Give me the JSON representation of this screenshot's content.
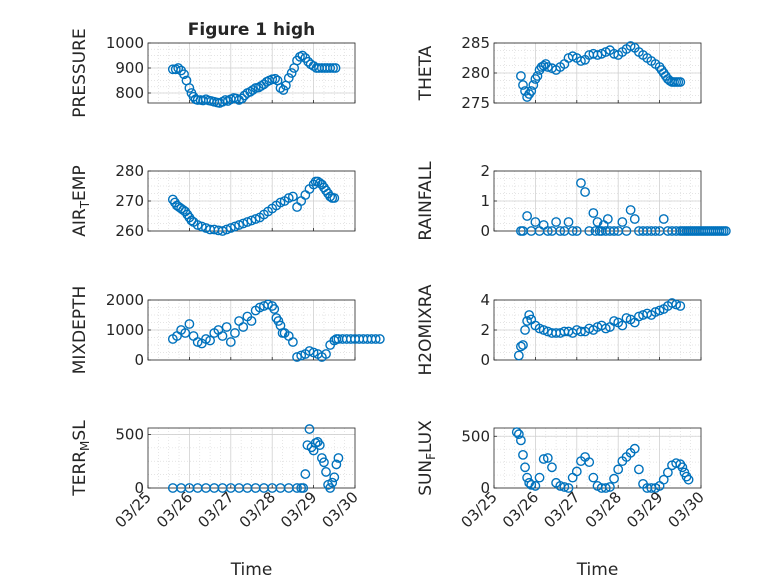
{
  "figure": {
    "title": "Figure 1 high",
    "xlabel": "Time",
    "xtick_labels": [
      "03/25",
      "03/26",
      "03/27",
      "03/28",
      "03/29",
      "03/30"
    ],
    "marker_color": "#0072BD",
    "grid_color": "#dcdcdc"
  },
  "chart_data": [
    {
      "type": "scatter",
      "ylabel": "PRESSURE",
      "ylim": [
        760,
        1000
      ],
      "yticks": [
        800,
        900,
        1000
      ],
      "grid": true,
      "x": [
        0.6,
        0.67,
        0.73,
        0.8,
        0.87,
        0.93,
        1.0,
        1.05,
        1.1,
        1.15,
        1.2,
        1.27,
        1.33,
        1.4,
        1.47,
        1.53,
        1.6,
        1.67,
        1.73,
        1.8,
        1.87,
        1.93,
        2.0,
        2.07,
        2.13,
        2.2,
        2.27,
        2.33,
        2.4,
        2.47,
        2.53,
        2.6,
        2.67,
        2.73,
        2.8,
        2.87,
        2.93,
        3.0,
        3.07,
        3.13,
        3.2,
        3.27,
        3.33,
        3.4,
        3.47,
        3.53,
        3.6,
        3.67,
        3.73,
        3.8,
        3.87,
        3.93,
        4.0,
        4.07,
        4.13,
        4.2,
        4.27,
        4.33,
        4.4,
        4.47,
        4.53
      ],
      "y": [
        895,
        895,
        900,
        890,
        875,
        850,
        820,
        800,
        785,
        775,
        772,
        772,
        770,
        775,
        770,
        768,
        765,
        762,
        760,
        765,
        772,
        768,
        775,
        780,
        778,
        772,
        778,
        790,
        800,
        805,
        812,
        820,
        822,
        828,
        835,
        845,
        850,
        855,
        857,
        850,
        820,
        812,
        830,
        860,
        880,
        900,
        930,
        945,
        950,
        940,
        925,
        915,
        908,
        900,
        900,
        900,
        900,
        900,
        900,
        900,
        900
      ]
    },
    {
      "type": "scatter",
      "ylabel": "THETA",
      "ylim": [
        275,
        285
      ],
      "yticks": [
        275,
        280,
        285
      ],
      "grid": true,
      "x": [
        0.65,
        0.7,
        0.75,
        0.8,
        0.85,
        0.9,
        0.95,
        1.0,
        1.05,
        1.1,
        1.15,
        1.2,
        1.25,
        1.3,
        1.4,
        1.5,
        1.6,
        1.7,
        1.8,
        1.9,
        2.0,
        2.1,
        2.2,
        2.3,
        2.4,
        2.5,
        2.6,
        2.7,
        2.8,
        2.9,
        3.0,
        3.1,
        3.2,
        3.3,
        3.4,
        3.5,
        3.6,
        3.7,
        3.8,
        3.9,
        4.0,
        4.05,
        4.1,
        4.15,
        4.2,
        4.25,
        4.3,
        4.35,
        4.4,
        4.45,
        4.5
      ],
      "y": [
        279.5,
        278,
        277,
        276,
        276.5,
        277,
        278,
        279,
        279.5,
        280.5,
        281,
        281.2,
        281.5,
        281,
        280.8,
        280.5,
        281,
        281.5,
        282.5,
        282.8,
        282.5,
        282,
        282.2,
        283,
        283.2,
        283,
        283.2,
        283.5,
        283.8,
        283.2,
        283,
        283.5,
        284,
        284.5,
        284.2,
        283.5,
        283,
        282.5,
        282,
        281.5,
        281,
        280.5,
        280,
        279.5,
        279,
        278.7,
        278.5,
        278.5,
        278.5,
        278.5,
        278.5
      ]
    },
    {
      "type": "scatter",
      "ylabel": "AIR_TEMP",
      "ylim": [
        260,
        280
      ],
      "yticks": [
        260,
        270,
        280
      ],
      "grid": true,
      "x": [
        0.6,
        0.65,
        0.7,
        0.75,
        0.8,
        0.85,
        0.9,
        0.95,
        1.0,
        1.05,
        1.1,
        1.2,
        1.3,
        1.4,
        1.5,
        1.6,
        1.7,
        1.8,
        1.9,
        2.0,
        2.1,
        2.2,
        2.3,
        2.4,
        2.5,
        2.6,
        2.7,
        2.8,
        2.9,
        3.0,
        3.1,
        3.2,
        3.3,
        3.4,
        3.5,
        3.6,
        3.7,
        3.8,
        3.9,
        4.0,
        4.05,
        4.1,
        4.15,
        4.2,
        4.25,
        4.3,
        4.35,
        4.4,
        4.45,
        4.5
      ],
      "y": [
        270.5,
        269.5,
        268.5,
        268,
        267.5,
        267,
        266.5,
        265.5,
        264.5,
        263.5,
        263,
        262,
        261.5,
        261,
        260.5,
        260.5,
        260.2,
        260,
        260.5,
        261,
        261.5,
        262,
        262.5,
        263,
        263.5,
        264,
        264.5,
        265.5,
        266.5,
        267.5,
        268.5,
        269.5,
        270,
        271,
        271.5,
        268,
        270,
        272,
        274,
        275.5,
        276.5,
        276.5,
        276,
        275.5,
        274.5,
        273.5,
        272.5,
        271.5,
        271,
        271
      ]
    },
    {
      "type": "scatter",
      "ylabel": "RAINFALL",
      "ylim": [
        0,
        2
      ],
      "yticks": [
        0,
        1,
        2
      ],
      "grid": true,
      "x": [
        0.65,
        0.7,
        0.8,
        0.9,
        1.0,
        1.1,
        1.2,
        1.3,
        1.4,
        1.5,
        1.6,
        1.7,
        1.8,
        1.9,
        2.0,
        2.1,
        2.2,
        2.3,
        2.4,
        2.45,
        2.5,
        2.55,
        2.6,
        2.65,
        2.7,
        2.75,
        2.8,
        2.9,
        3.0,
        3.1,
        3.2,
        3.3,
        3.4,
        3.5,
        3.6,
        3.7,
        3.8,
        3.9,
        4.0,
        4.1,
        4.2,
        4.3,
        4.4,
        4.5,
        4.55,
        4.6,
        4.65,
        4.7,
        4.75,
        4.8,
        4.85,
        4.9,
        4.95,
        5.0,
        5.05,
        5.1,
        5.15,
        5.2,
        5.25,
        5.3,
        5.35,
        5.4,
        5.45,
        5.5,
        5.55,
        5.6
      ],
      "y": [
        0,
        0,
        0.5,
        0,
        0.3,
        0,
        0.2,
        0,
        0,
        0.3,
        0,
        0,
        0.3,
        0,
        0,
        1.6,
        1.3,
        0,
        0.6,
        0,
        0.3,
        0,
        0,
        0.2,
        0,
        0.4,
        0,
        0,
        0,
        0.3,
        0,
        0.7,
        0.4,
        0,
        0,
        0,
        0,
        0,
        0,
        0.4,
        0,
        0,
        0,
        0,
        0,
        0,
        0,
        0,
        0,
        0,
        0,
        0,
        0,
        0,
        0,
        0,
        0,
        0,
        0,
        0,
        0,
        0,
        0,
        0,
        0,
        0
      ]
    },
    {
      "type": "scatter",
      "ylabel": "MIXDEPTH",
      "ylim": [
        0,
        2000
      ],
      "yticks": [
        0,
        1000,
        2000
      ],
      "grid": true,
      "x": [
        0.6,
        0.7,
        0.8,
        0.9,
        1.0,
        1.1,
        1.2,
        1.3,
        1.4,
        1.5,
        1.6,
        1.7,
        1.8,
        1.9,
        2.0,
        2.1,
        2.2,
        2.3,
        2.4,
        2.5,
        2.6,
        2.7,
        2.8,
        2.9,
        3.0,
        3.05,
        3.1,
        3.15,
        3.2,
        3.25,
        3.3,
        3.4,
        3.5,
        3.6,
        3.7,
        3.8,
        3.9,
        4.0,
        4.1,
        4.2,
        4.3,
        4.4,
        4.5,
        4.55,
        4.6,
        4.7,
        4.8,
        4.9,
        5.0,
        5.1,
        5.2,
        5.3,
        5.4,
        5.5,
        5.6
      ],
      "y": [
        700,
        800,
        1000,
        900,
        1200,
        800,
        600,
        550,
        700,
        650,
        900,
        1000,
        800,
        1100,
        600,
        900,
        1300,
        1100,
        1450,
        1300,
        1650,
        1750,
        1800,
        1850,
        1800,
        1700,
        1400,
        1300,
        1150,
        900,
        900,
        800,
        600,
        100,
        150,
        200,
        300,
        250,
        200,
        100,
        200,
        500,
        650,
        700,
        700,
        700,
        700,
        700,
        700,
        700,
        700,
        700,
        700,
        700,
        700
      ]
    },
    {
      "type": "scatter",
      "ylabel": "H2OMIXRA",
      "ylim": [
        0,
        4
      ],
      "yticks": [
        0,
        2,
        4
      ],
      "grid": true,
      "x": [
        0.6,
        0.65,
        0.7,
        0.75,
        0.8,
        0.85,
        0.9,
        1.0,
        1.1,
        1.2,
        1.3,
        1.4,
        1.5,
        1.6,
        1.7,
        1.8,
        1.9,
        2.0,
        2.1,
        2.2,
        2.3,
        2.4,
        2.5,
        2.6,
        2.7,
        2.8,
        2.9,
        3.0,
        3.1,
        3.2,
        3.3,
        3.4,
        3.5,
        3.6,
        3.7,
        3.8,
        3.9,
        4.0,
        4.1,
        4.2,
        4.3,
        4.4,
        4.5
      ],
      "y": [
        0.3,
        0.9,
        1.0,
        2.0,
        2.6,
        3.0,
        2.7,
        2.3,
        2.1,
        2.0,
        1.9,
        1.8,
        1.8,
        1.8,
        1.9,
        1.9,
        1.8,
        2.0,
        1.9,
        1.9,
        2.1,
        2.0,
        2.2,
        2.3,
        2.1,
        2.2,
        2.6,
        2.5,
        2.3,
        2.8,
        2.7,
        2.5,
        2.9,
        3.0,
        3.1,
        3.0,
        3.2,
        3.3,
        3.4,
        3.6,
        3.8,
        3.7,
        3.6
      ]
    },
    {
      "type": "scatter",
      "ylabel": "TERR_MSL",
      "ylim": [
        0,
        560
      ],
      "yticks": [
        0,
        500
      ],
      "grid": true,
      "x": [
        0.6,
        0.8,
        1.0,
        1.2,
        1.4,
        1.6,
        1.8,
        2.0,
        2.2,
        2.4,
        2.6,
        2.8,
        3.0,
        3.2,
        3.4,
        3.6,
        3.7,
        3.75,
        3.8,
        3.85,
        3.9,
        3.95,
        4.0,
        4.05,
        4.1,
        4.15,
        4.2,
        4.25,
        4.3,
        4.35,
        4.4,
        4.45,
        4.5,
        4.55,
        4.6
      ],
      "y": [
        0,
        0,
        0,
        0,
        0,
        0,
        0,
        0,
        0,
        0,
        0,
        0,
        0,
        0,
        0,
        0,
        0,
        0,
        130,
        400,
        550,
        380,
        350,
        420,
        430,
        400,
        280,
        240,
        150,
        30,
        0,
        50,
        100,
        220,
        280
      ]
    },
    {
      "type": "scatter",
      "ylabel": "SUN_FLUX",
      "ylim": [
        0,
        580
      ],
      "yticks": [
        0,
        500
      ],
      "grid": true,
      "x": [
        0.55,
        0.6,
        0.65,
        0.7,
        0.75,
        0.8,
        0.85,
        0.9,
        1.0,
        1.1,
        1.2,
        1.3,
        1.4,
        1.5,
        1.6,
        1.7,
        1.8,
        1.9,
        2.0,
        2.1,
        2.2,
        2.3,
        2.4,
        2.5,
        2.6,
        2.7,
        2.8,
        2.9,
        3.0,
        3.1,
        3.2,
        3.3,
        3.4,
        3.5,
        3.6,
        3.7,
        3.8,
        3.9,
        4.0,
        4.1,
        4.2,
        4.3,
        4.4,
        4.5,
        4.55,
        4.6,
        4.65,
        4.7
      ],
      "y": [
        540,
        520,
        460,
        320,
        200,
        100,
        50,
        30,
        20,
        100,
        280,
        290,
        200,
        50,
        20,
        10,
        0,
        100,
        160,
        260,
        300,
        250,
        100,
        20,
        0,
        0,
        10,
        90,
        180,
        260,
        300,
        340,
        380,
        180,
        40,
        0,
        0,
        0,
        20,
        80,
        150,
        220,
        240,
        230,
        200,
        150,
        110,
        80
      ]
    }
  ]
}
